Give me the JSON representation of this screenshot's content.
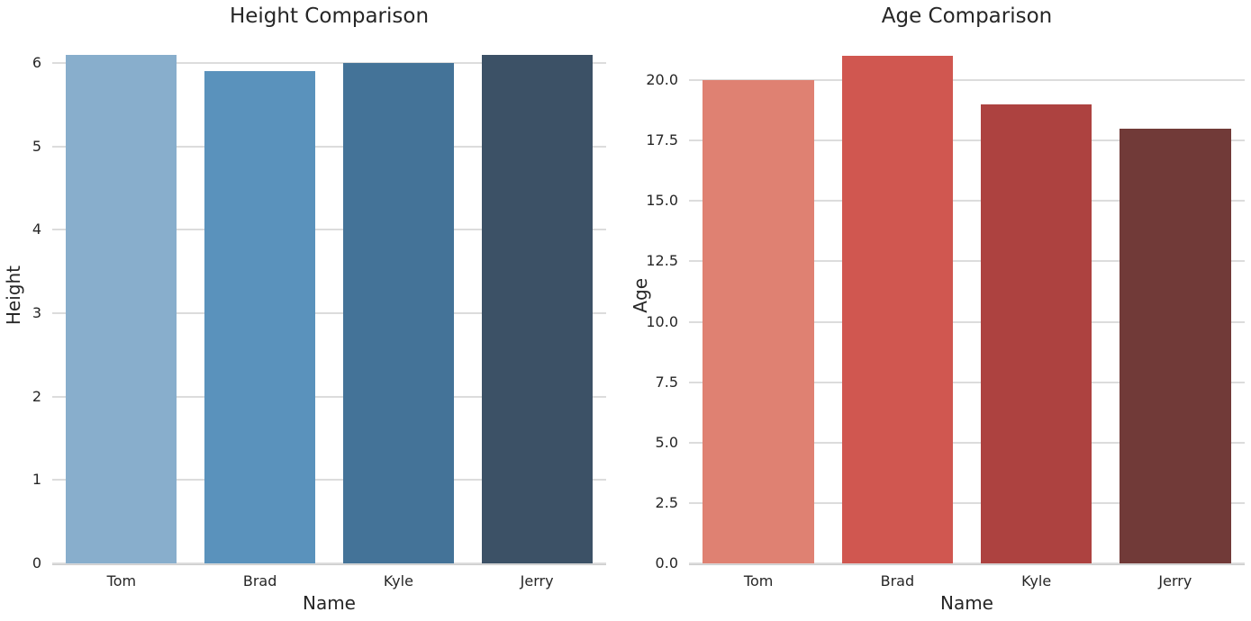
{
  "figure": {
    "background": "#ffffff",
    "text_color": "#262626",
    "grid_color": "#dcdcdc",
    "spine_color": "#cccccc"
  },
  "chart_data": [
    {
      "type": "bar",
      "title": "Height Comparison",
      "xlabel": "Name",
      "ylabel": "Height",
      "categories": [
        "Tom",
        "Brad",
        "Kyle",
        "Jerry"
      ],
      "values": [
        6.1,
        5.9,
        6.0,
        6.1
      ],
      "bar_colors": [
        "#88aecc",
        "#5a92bc",
        "#447398",
        "#3c5166"
      ],
      "ytick_labels": [
        "0",
        "1",
        "2",
        "3",
        "4",
        "5",
        "6"
      ],
      "ytick_values": [
        0,
        1,
        2,
        3,
        4,
        5,
        6
      ],
      "ylim": [
        0,
        6.43
      ],
      "grid": "horizontal",
      "legend": "none"
    },
    {
      "type": "bar",
      "title": "Age Comparison",
      "xlabel": "Name",
      "ylabel": "Age",
      "categories": [
        "Tom",
        "Brad",
        "Kyle",
        "Jerry"
      ],
      "values": [
        20.0,
        21.0,
        19.0,
        18.0
      ],
      "bar_colors": [
        "#df8172",
        "#d05750",
        "#ad4240",
        "#713a38"
      ],
      "ytick_labels": [
        "0.0",
        "2.5",
        "5.0",
        "7.5",
        "10.0",
        "12.5",
        "15.0",
        "17.5",
        "20.0"
      ],
      "ytick_values": [
        0,
        2.5,
        5,
        7.5,
        10,
        12.5,
        15,
        17.5,
        20
      ],
      "ylim": [
        0,
        22.2
      ],
      "grid": "horizontal",
      "legend": "none"
    }
  ]
}
